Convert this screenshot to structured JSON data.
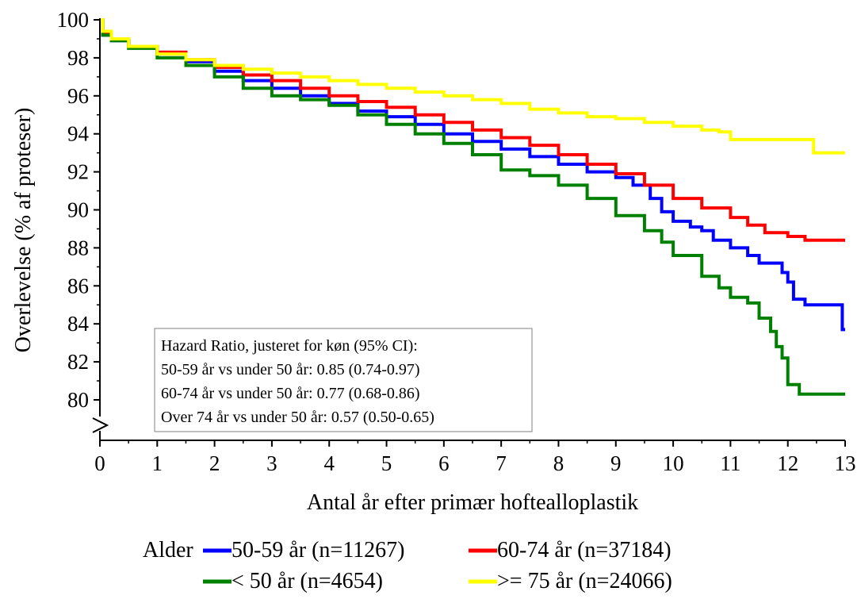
{
  "chart_data": {
    "type": "line",
    "title": "",
    "xlabel": "Antal år efter primær hoftealloplastik",
    "ylabel": "Overlevelse (% af proteser)",
    "xlim": [
      0,
      13
    ],
    "ylim": [
      78,
      100
    ],
    "axis_break": true,
    "x_ticks": [
      "0",
      "1",
      "2",
      "3",
      "4",
      "5",
      "6",
      "7",
      "8",
      "9",
      "10",
      "11",
      "12",
      "13"
    ],
    "y_ticks": [
      "80",
      "82",
      "84",
      "86",
      "88",
      "90",
      "92",
      "94",
      "96",
      "98",
      "100"
    ],
    "grid": false,
    "legend": {
      "title": "Alder",
      "placement": "bottom",
      "entries": [
        {
          "label": "50-59 år (n=11267)",
          "color": "#0000ff"
        },
        {
          "label": "60-74 år (n=37184)",
          "color": "#ff0000"
        },
        {
          "label": "< 50 år (n=4654)",
          "color": "#008000"
        },
        {
          "label": ">= 75 år (n=24066)",
          "color": "#ffff00"
        }
      ]
    },
    "annotation": {
      "title": "Hazard Ratio, justeret for køn (95% CI):",
      "lines": [
        "50-59 år vs under 50 år: 0.85 (0.74-0.97)",
        "60-74 år vs under 50 år: 0.77 (0.68-0.86)",
        "Over 74 år vs under 50 år: 0.57 (0.50-0.65)"
      ]
    },
    "series": [
      {
        "name": "50-59 år (n=11267)",
        "color": "#0000ff",
        "x": [
          0,
          0.05,
          0.2,
          0.5,
          1,
          1.5,
          2,
          2.5,
          3,
          3.5,
          4,
          4.5,
          5,
          5.5,
          6,
          6.5,
          7,
          7.5,
          8,
          8.5,
          9,
          9.3,
          9.6,
          9.8,
          10,
          10.3,
          10.5,
          10.7,
          11,
          11.3,
          11.5,
          11.8,
          11.9,
          12,
          12.1,
          12.3,
          12.5,
          12.9,
          12.95,
          13
        ],
        "y": [
          100,
          99.2,
          98.9,
          98.6,
          98.2,
          97.8,
          97.3,
          96.8,
          96.4,
          96.0,
          95.6,
          95.2,
          94.9,
          94.5,
          94.0,
          93.6,
          93.2,
          92.8,
          92.4,
          92.0,
          91.7,
          91.3,
          90.6,
          89.9,
          89.4,
          89.1,
          88.9,
          88.4,
          88.0,
          87.6,
          87.2,
          87.2,
          86.7,
          86.2,
          85.3,
          85.0,
          85.0,
          85.0,
          83.7,
          83.7
        ]
      },
      {
        "name": "60-74 år (n=37184)",
        "color": "#ff0000",
        "x": [
          0,
          0.05,
          0.2,
          0.5,
          1,
          1.5,
          2,
          2.5,
          3,
          3.5,
          4,
          4.5,
          5,
          5.5,
          6,
          6.5,
          7,
          7.5,
          8,
          8.5,
          9,
          9.5,
          10,
          10.5,
          11,
          11.3,
          11.6,
          12,
          12.3,
          12.5,
          13
        ],
        "y": [
          100,
          99.3,
          99.0,
          98.6,
          98.3,
          97.9,
          97.5,
          97.1,
          96.8,
          96.4,
          96.0,
          95.7,
          95.4,
          95.0,
          94.6,
          94.2,
          93.8,
          93.4,
          92.9,
          92.4,
          91.9,
          91.3,
          90.6,
          90.1,
          89.6,
          89.2,
          88.8,
          88.6,
          88.4,
          88.4,
          88.4
        ]
      },
      {
        "name": "< 50 år (n=4654)",
        "color": "#008000",
        "x": [
          0,
          0.05,
          0.2,
          0.5,
          1,
          1.5,
          2,
          2.5,
          3,
          3.5,
          4,
          4.5,
          5,
          5.5,
          6,
          6.5,
          7,
          7.5,
          8,
          8.5,
          9,
          9.5,
          9.8,
          10,
          10.3,
          10.5,
          10.8,
          11,
          11.3,
          11.5,
          11.7,
          11.8,
          11.9,
          12,
          12.2,
          12.5,
          13
        ],
        "y": [
          100,
          99.2,
          98.9,
          98.5,
          98.0,
          97.6,
          97.0,
          96.4,
          96.0,
          95.8,
          95.5,
          95.0,
          94.5,
          94.0,
          93.5,
          92.9,
          92.1,
          91.8,
          91.3,
          90.6,
          89.7,
          88.9,
          88.3,
          87.6,
          87.6,
          86.5,
          85.9,
          85.4,
          85.1,
          84.3,
          83.6,
          82.8,
          82.2,
          80.8,
          80.3,
          80.3,
          80.3
        ]
      },
      {
        "name": ">= 75 år (n=24066)",
        "color": "#ffff00",
        "x": [
          0,
          0.05,
          0.2,
          0.5,
          1,
          1.5,
          2,
          2.5,
          3,
          3.5,
          4,
          4.5,
          5,
          5.5,
          6,
          6.5,
          7,
          7.5,
          8,
          8.5,
          9,
          9.5,
          10,
          10.5,
          10.8,
          11,
          11.5,
          12,
          12.4,
          12.45,
          13
        ],
        "y": [
          100,
          99.4,
          99.0,
          98.6,
          98.2,
          97.9,
          97.6,
          97.4,
          97.2,
          97.0,
          96.8,
          96.6,
          96.4,
          96.2,
          96.0,
          95.8,
          95.6,
          95.3,
          95.1,
          94.9,
          94.8,
          94.6,
          94.4,
          94.2,
          94.1,
          93.7,
          93.7,
          93.7,
          93.7,
          93.0,
          93.0
        ]
      }
    ]
  }
}
